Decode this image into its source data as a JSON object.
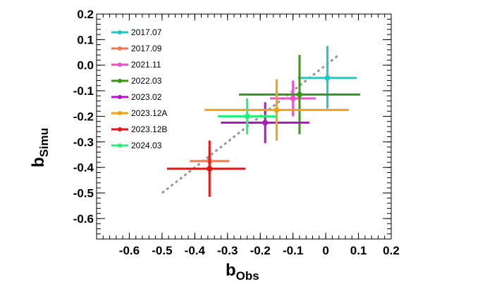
{
  "chart_data": {
    "type": "scatter",
    "xlabel_main": "b",
    "xlabel_sub": "Obs",
    "ylabel_main": "b",
    "ylabel_sub": "Simu",
    "xlim": [
      -0.7,
      0.2
    ],
    "ylim": [
      -0.68,
      0.2
    ],
    "xticks": [
      -0.6,
      -0.5,
      -0.4,
      -0.3,
      -0.2,
      -0.1,
      0,
      0.1,
      0.2
    ],
    "xtick_labels": [
      "-0.6",
      "-0.5",
      "-0.4",
      "-0.3",
      "-0.2",
      "-0.1",
      "0",
      "0.1",
      "0.2"
    ],
    "yticks": [
      -0.6,
      -0.5,
      -0.4,
      -0.3,
      -0.2,
      -0.1,
      0.0,
      0.1,
      0.2
    ],
    "ytick_labels": [
      "-0.6",
      "-0.5",
      "-0.4",
      "-0.3",
      "-0.2",
      "-0.1",
      "0.0",
      "0.1",
      "0.2"
    ],
    "grid": false,
    "legend_position": "top-left",
    "reference_line": {
      "x": [
        -0.5,
        0.04
      ],
      "y": [
        -0.5,
        0.04
      ],
      "color": "#999999",
      "style": "dotted"
    },
    "series": [
      {
        "name": "2017.07",
        "color": "#1fc8c8",
        "x": 0.005,
        "y": -0.05,
        "xerr": [
          0.09,
          0.09
        ],
        "yerr": [
          0.12,
          0.125
        ]
      },
      {
        "name": "2017.09",
        "color": "#f07850",
        "x": -0.355,
        "y": -0.375,
        "xerr": [
          0.06,
          0.06
        ],
        "yerr": [
          0.055,
          0.055
        ]
      },
      {
        "name": "2021.11",
        "color": "#f050c8",
        "x": -0.1,
        "y": -0.13,
        "xerr": [
          0.07,
          0.07
        ],
        "yerr": [
          0.07,
          0.07
        ]
      },
      {
        "name": "2022.03",
        "color": "#3c9614",
        "x": -0.08,
        "y": -0.115,
        "xerr": [
          0.185,
          0.185
        ],
        "yerr": [
          0.155,
          0.155
        ]
      },
      {
        "name": "2023.02",
        "color": "#b414c8",
        "x": -0.185,
        "y": -0.225,
        "xerr": [
          0.135,
          0.135
        ],
        "yerr": [
          0.08,
          0.08
        ]
      },
      {
        "name": "2023.12A",
        "color": "#f5a014",
        "x": -0.15,
        "y": -0.175,
        "xerr": [
          0.22,
          0.22
        ],
        "yerr": [
          0.12,
          0.12
        ]
      },
      {
        "name": "2023.12B",
        "color": "#e61414",
        "x": -0.355,
        "y": -0.405,
        "xerr": [
          0.13,
          0.11
        ],
        "yerr": [
          0.11,
          0.11
        ]
      },
      {
        "name": "2024.03",
        "color": "#28f078",
        "x": -0.24,
        "y": -0.2,
        "xerr": [
          0.09,
          0.09
        ],
        "yerr": [
          0.07,
          0.07
        ]
      }
    ]
  }
}
